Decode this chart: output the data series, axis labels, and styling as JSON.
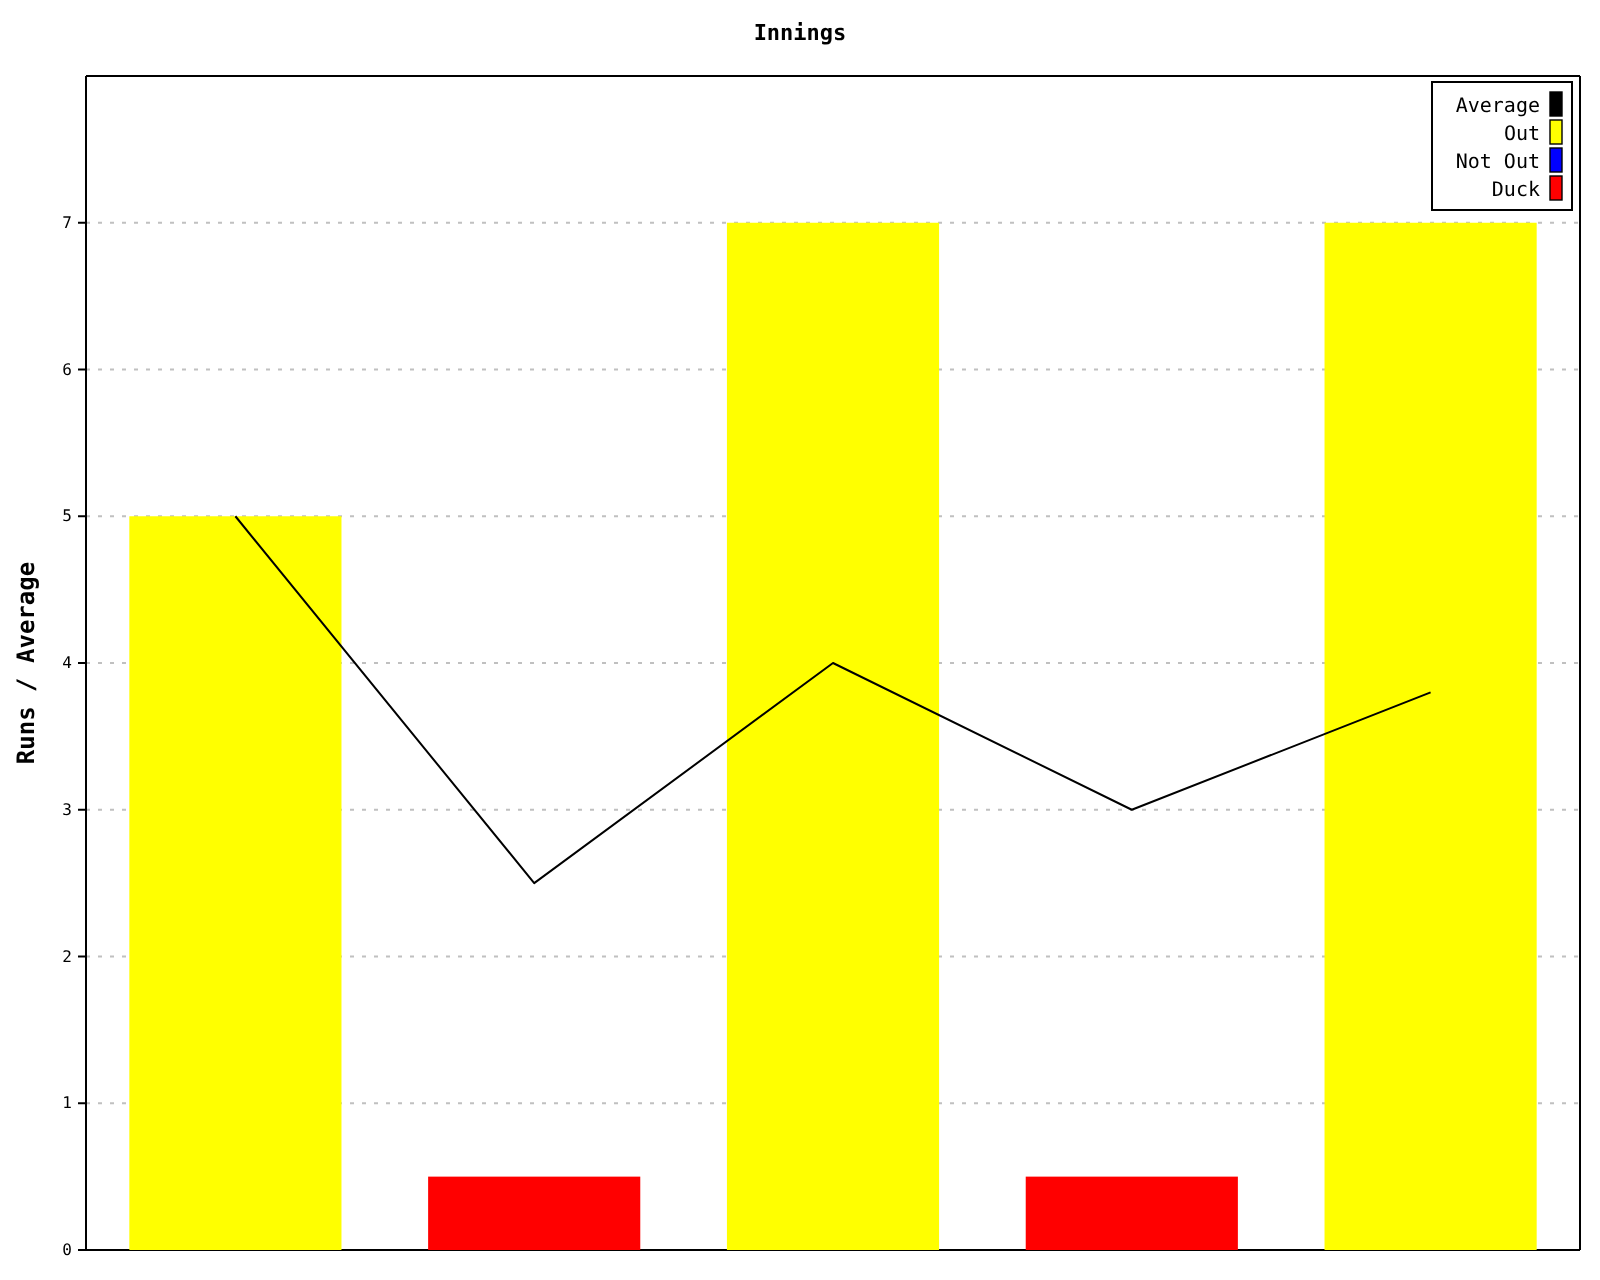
{
  "chart_data": {
    "type": "bar",
    "title": "Innings",
    "ylabel": "Runs / Average",
    "categories": [
      null,
      null,
      null,
      null,
      null
    ],
    "series": [
      {
        "name": "Average",
        "type": "line",
        "color": "#000000",
        "values": [
          5,
          2.5,
          4,
          3,
          3.8
        ]
      },
      {
        "name": "Out",
        "color": "#ffff00",
        "values": [
          5,
          null,
          7,
          null,
          7
        ]
      },
      {
        "name": "Not Out",
        "color": "#0000ff",
        "values": [
          null,
          null,
          null,
          null,
          null
        ]
      },
      {
        "name": "Duck",
        "color": "#ff0000",
        "values": [
          null,
          0.5,
          null,
          0.5,
          null
        ]
      }
    ],
    "stacked": true,
    "ylim": [
      0,
      8
    ],
    "yticks": [
      0,
      1,
      2,
      3,
      4,
      5,
      6,
      7
    ],
    "grid": "y",
    "legend": "top right",
    "tick_labels": "y",
    "marker": "none",
    "line_style": "solid"
  }
}
